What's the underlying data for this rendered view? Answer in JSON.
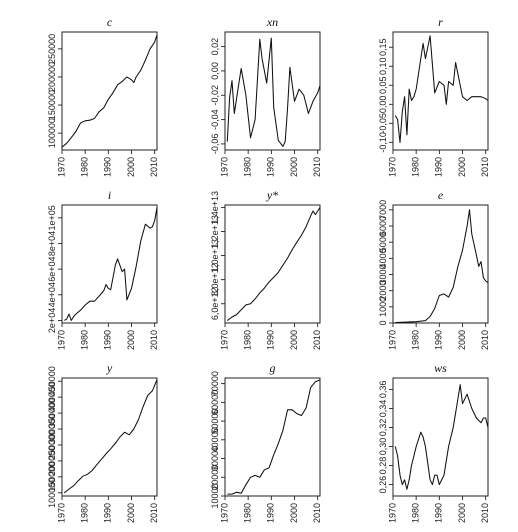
{
  "chart_data": [
    {
      "type": "line",
      "title": "c",
      "xlabel": "",
      "ylabel": "",
      "xlim": [
        1970,
        2011
      ],
      "ylim": [
        70000,
        280000
      ],
      "xticks": [
        1970,
        1980,
        1990,
        2000,
        2010
      ],
      "yticks": [
        100000,
        150000,
        200000,
        250000
      ],
      "ytick_labels": [
        "100000",
        "150000",
        "200000",
        "250000"
      ],
      "x": [
        1970,
        1972,
        1974,
        1976,
        1978,
        1980,
        1982,
        1984,
        1986,
        1988,
        1990,
        1992,
        1994,
        1996,
        1998,
        2000,
        2001,
        2002,
        2004,
        2006,
        2008,
        2010,
        2011
      ],
      "y": [
        75000,
        82000,
        92000,
        103000,
        118000,
        122000,
        123000,
        126000,
        138000,
        145000,
        160000,
        172000,
        186000,
        192000,
        200000,
        195000,
        190000,
        200000,
        212000,
        230000,
        250000,
        262000,
        275000
      ]
    },
    {
      "type": "line",
      "title": "xn",
      "xlabel": "",
      "ylabel": "",
      "xlim": [
        1970,
        2011
      ],
      "ylim": [
        -0.065,
        0.032
      ],
      "xticks": [
        1970,
        1980,
        1990,
        2000,
        2010
      ],
      "yticks": [
        -0.06,
        -0.04,
        -0.02,
        0.0,
        0.02
      ],
      "ytick_labels": [
        "-0,06",
        "-0,04",
        "-0,02",
        "0,00",
        "0,02"
      ],
      "x": [
        1971,
        1972,
        1973,
        1974,
        1976,
        1977,
        1979,
        1981,
        1983,
        1985,
        1986,
        1988,
        1990,
        1991,
        1993,
        1995,
        1996,
        1997,
        1998,
        2000,
        2002,
        2004,
        2006,
        2008,
        2010,
        2011
      ],
      "y": [
        -0.058,
        -0.022,
        -0.008,
        -0.035,
        -0.01,
        0.002,
        -0.02,
        -0.055,
        -0.04,
        0.026,
        0.01,
        -0.01,
        0.027,
        -0.03,
        -0.057,
        -0.062,
        -0.058,
        -0.03,
        0.003,
        -0.025,
        -0.015,
        -0.02,
        -0.035,
        -0.025,
        -0.018,
        -0.012
      ]
    },
    {
      "type": "line",
      "title": "r",
      "xlabel": "",
      "ylabel": "",
      "xlim": [
        1970,
        2011
      ],
      "ylim": [
        -0.12,
        0.19
      ],
      "xticks": [
        1970,
        1980,
        1990,
        2000,
        2010
      ],
      "yticks": [
        -0.1,
        -0.05,
        0.0,
        0.05,
        0.1,
        0.15
      ],
      "ytick_labels": [
        "-0,10",
        "-0,05",
        "0,00",
        "0,05",
        "0,10",
        "0,15"
      ],
      "x": [
        1971,
        1972,
        1973,
        1974,
        1975,
        1976,
        1977,
        1978,
        1979,
        1980,
        1982,
        1983,
        1984,
        1985,
        1986,
        1988,
        1990,
        1992,
        1993,
        1994,
        1996,
        1997,
        1998,
        2000,
        2002,
        2004,
        2006,
        2008,
        2010,
        2011
      ],
      "y": [
        -0.03,
        -0.04,
        -0.1,
        -0.02,
        0.02,
        -0.08,
        0.04,
        0.01,
        0.02,
        0.04,
        0.12,
        0.16,
        0.12,
        0.15,
        0.18,
        0.03,
        0.06,
        0.05,
        0.0,
        0.06,
        0.05,
        0.11,
        0.08,
        0.02,
        0.01,
        0.02,
        0.02,
        0.02,
        0.015,
        0.01
      ]
    },
    {
      "type": "line",
      "title": "i",
      "xlabel": "",
      "ylabel": "",
      "xlim": [
        1970,
        2011
      ],
      "ylim": [
        18000,
        110000
      ],
      "xticks": [
        1970,
        1980,
        1990,
        2000,
        2010
      ],
      "yticks": [
        20000,
        40000,
        60000,
        80000,
        100000
      ],
      "ytick_labels": [
        "2e+04",
        "4e+04",
        "6e+04",
        "8e+04",
        "1e+05"
      ],
      "x": [
        1971,
        1972,
        1973,
        1974,
        1975,
        1976,
        1978,
        1980,
        1982,
        1984,
        1986,
        1988,
        1989,
        1990,
        1991,
        1993,
        1994,
        1996,
        1997,
        1998,
        2000,
        2002,
        2004,
        2006,
        2008,
        2009,
        2010,
        2011
      ],
      "y": [
        20000,
        21000,
        25000,
        20000,
        23000,
        25000,
        28000,
        32000,
        35000,
        35000,
        39000,
        43000,
        48000,
        45000,
        44000,
        63000,
        68000,
        58000,
        60000,
        36000,
        45000,
        62000,
        82000,
        95000,
        92000,
        93000,
        98000,
        108000
      ]
    },
    {
      "type": "line",
      "title": "y*",
      "xlabel": "",
      "ylabel": "",
      "xlim": [
        1970,
        2011
      ],
      "ylim": [
        4400000000000.0,
        14200000000000.0
      ],
      "xticks": [
        1970,
        1980,
        1990,
        2000,
        2010
      ],
      "yticks": [
        6000000000000.0,
        8000000000000.0,
        10000000000000.0,
        12000000000000.0,
        14000000000000.0
      ],
      "ytick_labels": [
        "6,0e+12",
        "8,0e+12",
        "1,0e+13",
        "1,2e+13",
        "1,4e+13"
      ],
      "x": [
        1971,
        1973,
        1975,
        1977,
        1979,
        1981,
        1983,
        1985,
        1987,
        1989,
        1991,
        1993,
        1995,
        1997,
        1999,
        2001,
        2003,
        2005,
        2007,
        2008,
        2009,
        2010,
        2011
      ],
      "y": [
        4600000000000.0,
        4900000000000.0,
        5100000000000.0,
        5500000000000.0,
        5900000000000.0,
        6000000000000.0,
        6400000000000.0,
        6900000000000.0,
        7300000000000.0,
        7800000000000.0,
        8200000000000.0,
        8600000000000.0,
        9200000000000.0,
        9800000000000.0,
        10500000000000.0,
        11100000000000.0,
        11700000000000.0,
        12400000000000.0,
        13300000000000.0,
        13700000000000.0,
        13400000000000.0,
        13700000000000.0,
        14000000000000.0
      ]
    },
    {
      "type": "line",
      "title": "e",
      "xlabel": "",
      "ylabel": "",
      "xlim": [
        1970,
        2011
      ],
      "ylim": [
        0,
        7300
      ],
      "xticks": [
        1970,
        1980,
        1990,
        2000,
        2010
      ],
      "yticks": [
        0,
        1000,
        2000,
        3000,
        4000,
        5000,
        6000,
        7000
      ],
      "ytick_labels": [
        "0",
        "1000",
        "2000",
        "3000",
        "4000",
        "5000",
        "6000",
        "7000"
      ],
      "x": [
        1971,
        1975,
        1980,
        1984,
        1986,
        1988,
        1990,
        1992,
        1994,
        1996,
        1998,
        2000,
        2002,
        2003,
        2004,
        2006,
        2007,
        2008,
        2009,
        2010,
        2011
      ],
      "y": [
        30,
        50,
        80,
        150,
        400,
        900,
        1700,
        1800,
        1600,
        2200,
        3500,
        4500,
        6000,
        7000,
        5500,
        4200,
        3500,
        3800,
        2800,
        2600,
        2500
      ]
    },
    {
      "type": "line",
      "title": "y",
      "xlabel": "",
      "ylabel": "",
      "xlim": [
        1970,
        2011
      ],
      "ylim": [
        90000,
        460000
      ],
      "xticks": [
        1970,
        1980,
        1990,
        2000,
        2010
      ],
      "yticks": [
        100000,
        150000,
        200000,
        250000,
        300000,
        350000,
        400000,
        450000
      ],
      "ytick_labels": [
        "100000",
        "150000",
        "200000",
        "250000",
        "300000",
        "350000",
        "400000",
        "450000"
      ],
      "x": [
        1971,
        1973,
        1975,
        1977,
        1979,
        1981,
        1983,
        1985,
        1987,
        1989,
        1991,
        1993,
        1995,
        1997,
        1999,
        2001,
        2003,
        2005,
        2007,
        2009,
        2011
      ],
      "y": [
        100000,
        112000,
        122000,
        138000,
        152000,
        158000,
        170000,
        188000,
        205000,
        222000,
        238000,
        255000,
        275000,
        290000,
        282000,
        300000,
        330000,
        370000,
        405000,
        420000,
        455000
      ]
    },
    {
      "type": "line",
      "title": "g",
      "xlabel": "",
      "ylabel": "",
      "xlim": [
        1970,
        2011
      ],
      "ylim": [
        10000,
        73000
      ],
      "xticks": [
        1970,
        1980,
        1990,
        2000,
        2010
      ],
      "yticks": [
        10000,
        20000,
        30000,
        40000,
        50000,
        60000,
        70000
      ],
      "ytick_labels": [
        "10000",
        "20000",
        "30000",
        "40000",
        "50000",
        "60000",
        "70000"
      ],
      "x": [
        1971,
        1973,
        1975,
        1977,
        1979,
        1981,
        1983,
        1985,
        1987,
        1989,
        1991,
        1993,
        1995,
        1997,
        1999,
        2001,
        2003,
        2005,
        2007,
        2009,
        2011
      ],
      "y": [
        11000,
        11000,
        12000,
        11500,
        16000,
        20000,
        21000,
        20000,
        24000,
        25000,
        32000,
        38000,
        45000,
        56000,
        56000,
        54000,
        53000,
        57000,
        68000,
        71000,
        72000
      ]
    },
    {
      "type": "line",
      "title": "ws",
      "xlabel": "",
      "ylabel": "",
      "xlim": [
        1970,
        2011
      ],
      "ylim": [
        0.248,
        0.372
      ],
      "xticks": [
        1970,
        1980,
        1990,
        2000,
        2010
      ],
      "yticks": [
        0.26,
        0.28,
        0.3,
        0.32,
        0.34,
        0.36
      ],
      "ytick_labels": [
        "0,26",
        "0,28",
        "0,30",
        "0,32",
        "0,34",
        "0,36"
      ],
      "x": [
        1971,
        1972,
        1973,
        1974,
        1975,
        1976,
        1977,
        1978,
        1979,
        1980,
        1982,
        1983,
        1984,
        1986,
        1987,
        1988,
        1989,
        1990,
        1992,
        1994,
        1996,
        1998,
        1999,
        2000,
        2002,
        2004,
        2006,
        2008,
        2009,
        2010,
        2011
      ],
      "y": [
        0.3,
        0.29,
        0.27,
        0.26,
        0.265,
        0.255,
        0.265,
        0.28,
        0.29,
        0.3,
        0.315,
        0.31,
        0.3,
        0.265,
        0.26,
        0.27,
        0.27,
        0.26,
        0.27,
        0.3,
        0.32,
        0.35,
        0.365,
        0.345,
        0.355,
        0.34,
        0.33,
        0.325,
        0.33,
        0.33,
        0.32
      ]
    }
  ]
}
